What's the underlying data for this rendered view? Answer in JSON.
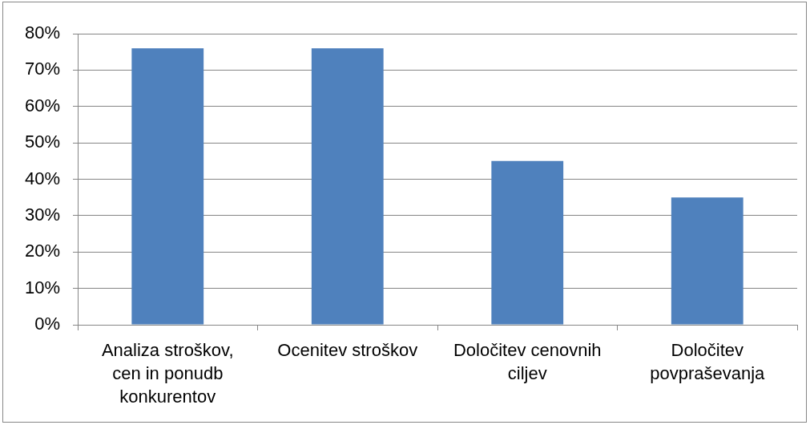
{
  "chart_data": {
    "type": "bar",
    "categories": [
      "Analiza stroškov, cen in ponudb konkurentov",
      "Ocenitev stroškov",
      "Določitev cenovnih ciljev",
      "Določitev povpraševanja"
    ],
    "values": [
      76,
      76,
      45,
      35
    ],
    "color": "#4f81bd",
    "ylim": [
      0,
      80
    ],
    "yticks": [
      {
        "value": 0,
        "label": "0%"
      },
      {
        "value": 10,
        "label": "10%"
      },
      {
        "value": 20,
        "label": "20%"
      },
      {
        "value": 30,
        "label": "30%"
      },
      {
        "value": 40,
        "label": "40%"
      },
      {
        "value": 50,
        "label": "50%"
      },
      {
        "value": 60,
        "label": "60%"
      },
      {
        "value": 70,
        "label": "70%"
      },
      {
        "value": 80,
        "label": "80%"
      }
    ],
    "grid": "y"
  }
}
